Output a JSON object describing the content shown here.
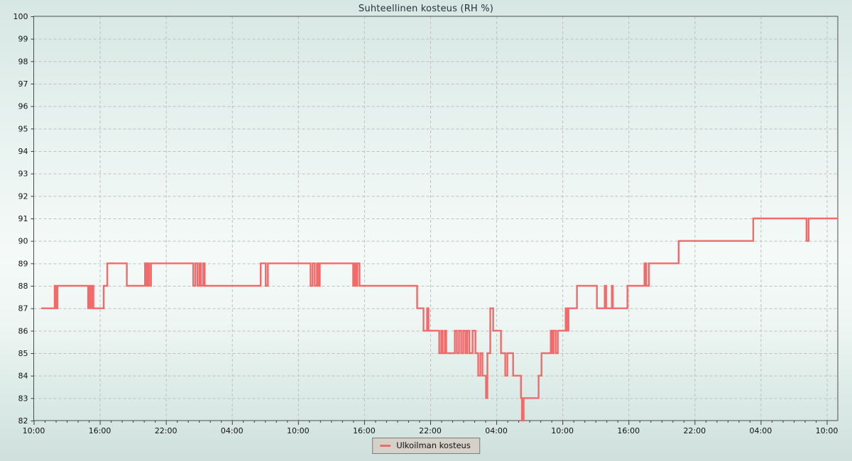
{
  "chart_data": {
    "type": "line",
    "title": "Suhteellinen kosteus (RH %)",
    "x_axis": {
      "range_hours": [
        0,
        73
      ],
      "major_tick_interval_hours": 6,
      "minor_tick_interval_hours": 1,
      "label_hours": [
        0,
        6,
        12,
        18,
        24,
        30,
        36,
        42,
        48,
        54,
        60,
        66,
        72
      ],
      "labels": [
        "10:00",
        "16:00",
        "22:00",
        "04:00",
        "10:00",
        "16:00",
        "22:00",
        "04:00",
        "10:00",
        "16:00",
        "22:00",
        "04:00",
        "10:00"
      ]
    },
    "y_axis": {
      "min": 82,
      "max": 100,
      "tick_step": 1,
      "ticks": [
        82,
        83,
        84,
        85,
        86,
        87,
        88,
        89,
        90,
        91,
        92,
        93,
        94,
        95,
        96,
        97,
        98,
        99,
        100
      ]
    },
    "grid": {
      "horizontal": true,
      "vertical_major": true,
      "style": "dashed"
    },
    "legend": {
      "position": "bottom-center",
      "entries": [
        {
          "label": "Ulkoilman kosteus",
          "color": "#f26a6a"
        }
      ]
    },
    "series": [
      {
        "name": "Ulkoilman kosteus",
        "color": "#f26a6a",
        "style": "step-after",
        "points": [
          [
            0.68,
            87
          ],
          [
            1.9,
            88
          ],
          [
            2.03,
            87
          ],
          [
            2.16,
            88
          ],
          [
            4.94,
            87
          ],
          [
            5.06,
            88
          ],
          [
            5.19,
            87
          ],
          [
            5.32,
            88
          ],
          [
            5.42,
            87
          ],
          [
            6.35,
            88
          ],
          [
            6.68,
            89
          ],
          [
            8.45,
            88
          ],
          [
            10.1,
            89
          ],
          [
            10.23,
            88
          ],
          [
            10.35,
            89
          ],
          [
            10.48,
            88
          ],
          [
            10.65,
            89
          ],
          [
            14.48,
            88
          ],
          [
            14.68,
            89
          ],
          [
            14.87,
            88
          ],
          [
            15.06,
            89
          ],
          [
            15.19,
            88
          ],
          [
            15.39,
            89
          ],
          [
            15.52,
            88
          ],
          [
            20.61,
            89
          ],
          [
            21.06,
            88
          ],
          [
            21.26,
            89
          ],
          [
            25.13,
            88
          ],
          [
            25.32,
            89
          ],
          [
            25.52,
            88
          ],
          [
            25.71,
            89
          ],
          [
            25.84,
            88
          ],
          [
            25.97,
            89
          ],
          [
            29.0,
            88
          ],
          [
            29.13,
            89
          ],
          [
            29.26,
            88
          ],
          [
            29.39,
            89
          ],
          [
            29.58,
            88
          ],
          [
            34.81,
            87
          ],
          [
            35.39,
            86
          ],
          [
            35.71,
            87
          ],
          [
            35.84,
            86
          ],
          [
            36.81,
            85
          ],
          [
            37.0,
            86
          ],
          [
            37.13,
            85
          ],
          [
            37.32,
            86
          ],
          [
            37.45,
            85
          ],
          [
            38.23,
            86
          ],
          [
            38.42,
            85
          ],
          [
            38.61,
            86
          ],
          [
            38.81,
            85
          ],
          [
            39.0,
            86
          ],
          [
            39.19,
            85
          ],
          [
            39.35,
            86
          ],
          [
            39.55,
            85
          ],
          [
            39.84,
            86
          ],
          [
            40.1,
            85
          ],
          [
            40.35,
            84
          ],
          [
            40.55,
            85
          ],
          [
            40.74,
            84
          ],
          [
            41.06,
            83
          ],
          [
            41.19,
            85
          ],
          [
            41.45,
            87
          ],
          [
            41.71,
            86
          ],
          [
            42.42,
            85
          ],
          [
            42.81,
            84
          ],
          [
            43.0,
            85
          ],
          [
            43.52,
            84
          ],
          [
            44.23,
            83
          ],
          [
            44.32,
            82
          ],
          [
            44.48,
            83
          ],
          [
            45.84,
            84
          ],
          [
            46.1,
            85
          ],
          [
            46.94,
            86
          ],
          [
            47.06,
            85
          ],
          [
            47.19,
            86
          ],
          [
            47.39,
            85
          ],
          [
            47.58,
            86
          ],
          [
            48.29,
            87
          ],
          [
            48.42,
            86
          ],
          [
            48.55,
            87
          ],
          [
            49.32,
            88
          ],
          [
            51.13,
            87
          ],
          [
            51.84,
            88
          ],
          [
            51.97,
            87
          ],
          [
            52.48,
            88
          ],
          [
            52.58,
            87
          ],
          [
            53.9,
            88
          ],
          [
            55.45,
            89
          ],
          [
            55.6,
            88
          ],
          [
            55.84,
            89
          ],
          [
            58.55,
            90
          ],
          [
            65.32,
            91
          ],
          [
            70.16,
            90
          ],
          [
            70.35,
            91
          ],
          [
            73.0,
            91
          ]
        ]
      }
    ],
    "colors": {
      "line": "#f26a6a",
      "grid": "#c0c0c0",
      "border": "#4d4d4d",
      "tick": "#3a3a3a",
      "tick_label": "#111111",
      "title": "#26323b",
      "legend_bg": "#d5d1c8",
      "legend_border": "#7d7d7d"
    }
  }
}
